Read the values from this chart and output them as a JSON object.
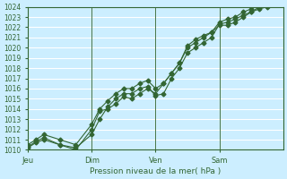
{
  "title": "",
  "xlabel": "Pression niveau de la mer( hPa )",
  "ylabel": "",
  "background_color": "#cceeff",
  "grid_color": "#ffffff",
  "line_color": "#336633",
  "ylim": [
    1010,
    1024
  ],
  "yticks": [
    1010,
    1011,
    1012,
    1013,
    1014,
    1015,
    1016,
    1017,
    1018,
    1019,
    1020,
    1021,
    1022,
    1023,
    1024
  ],
  "xtick_positions": [
    0,
    48,
    96,
    144
  ],
  "xtick_labels": [
    "Jeu",
    "Dim",
    "Ven",
    "Sam"
  ],
  "num_hours": 192,
  "line1_x": [
    0,
    6,
    12,
    24,
    36,
    48,
    54,
    60,
    66,
    72,
    78,
    84,
    90,
    96,
    102,
    108,
    114,
    120,
    126,
    132,
    138,
    144,
    150,
    156,
    162,
    168,
    174,
    180,
    186,
    192
  ],
  "line1_y": [
    1010.2,
    1010.7,
    1011.0,
    1010.5,
    1010.0,
    1012.0,
    1013.8,
    1014.0,
    1014.5,
    1015.2,
    1015.0,
    1015.5,
    1016.0,
    1015.5,
    1016.5,
    1017.5,
    1018.5,
    1020.0,
    1020.5,
    1021.0,
    1021.5,
    1022.2,
    1022.2,
    1022.5,
    1023.0,
    1023.5,
    1023.8,
    1024.0,
    1024.2,
    1024.4
  ],
  "line2_x": [
    0,
    6,
    12,
    24,
    36,
    48,
    54,
    60,
    66,
    72,
    78,
    84,
    90,
    96,
    102,
    108,
    114,
    120,
    126,
    132,
    138,
    144,
    150,
    156,
    162,
    168,
    174,
    180,
    186,
    192
  ],
  "line2_y": [
    1010.3,
    1010.8,
    1011.2,
    1010.5,
    1010.2,
    1011.5,
    1013.0,
    1014.2,
    1015.0,
    1015.5,
    1015.5,
    1016.0,
    1016.2,
    1015.3,
    1015.5,
    1017.0,
    1018.0,
    1019.5,
    1020.0,
    1020.5,
    1021.0,
    1022.3,
    1022.5,
    1022.8,
    1023.2,
    1023.5,
    1024.0,
    1024.2,
    1024.3,
    1024.5
  ],
  "line3_x": [
    0,
    6,
    12,
    24,
    36,
    48,
    54,
    60,
    66,
    72,
    78,
    84,
    90,
    96,
    102,
    108,
    114,
    120,
    126,
    132,
    138,
    144,
    150,
    156,
    162,
    168,
    174,
    180,
    186,
    192
  ],
  "line3_y": [
    1010.5,
    1011.0,
    1011.5,
    1011.0,
    1010.5,
    1012.5,
    1014.0,
    1014.8,
    1015.5,
    1016.0,
    1016.0,
    1016.5,
    1016.8,
    1016.0,
    1016.5,
    1017.5,
    1018.5,
    1020.2,
    1020.8,
    1021.2,
    1021.5,
    1022.5,
    1022.8,
    1023.0,
    1023.5,
    1023.8,
    1024.2,
    1024.4,
    1024.5,
    1024.6
  ]
}
